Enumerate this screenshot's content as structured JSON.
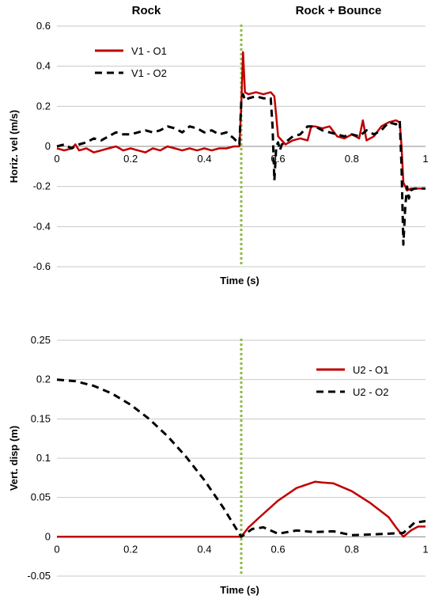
{
  "header": {
    "left_label": "Rock",
    "right_label": "Rock + Bounce"
  },
  "chart_data": [
    {
      "type": "line",
      "xlabel": "Time (s)",
      "ylabel": "Horiz. vel (m/s)",
      "xlim": [
        0,
        1
      ],
      "ylim": [
        -0.6,
        0.6
      ],
      "xticks": [
        "0",
        "0.2",
        "0.4",
        "0.6",
        "0.8",
        "1"
      ],
      "yticks": [
        "-0.6",
        "-0.4",
        "-0.2",
        "0",
        "0.2",
        "0.4",
        "0.6"
      ],
      "grid": "horizontal",
      "legend_position": "top-left",
      "marker_x": 0.5,
      "series": [
        {
          "name": "V1 - O1",
          "color": "#c00000",
          "style": "solid",
          "x": [
            0,
            0.02,
            0.04,
            0.05,
            0.06,
            0.08,
            0.1,
            0.12,
            0.14,
            0.16,
            0.18,
            0.2,
            0.22,
            0.24,
            0.26,
            0.28,
            0.3,
            0.32,
            0.34,
            0.36,
            0.38,
            0.4,
            0.42,
            0.44,
            0.46,
            0.48,
            0.495,
            0.5,
            0.505,
            0.51,
            0.52,
            0.54,
            0.56,
            0.58,
            0.59,
            0.595,
            0.6,
            0.61,
            0.62,
            0.64,
            0.66,
            0.68,
            0.69,
            0.7,
            0.72,
            0.74,
            0.76,
            0.78,
            0.8,
            0.81,
            0.82,
            0.83,
            0.84,
            0.86,
            0.88,
            0.9,
            0.92,
            0.93,
            0.935,
            0.94,
            0.95,
            0.96,
            1
          ],
          "values": [
            -0.01,
            -0.02,
            -0.01,
            0.01,
            -0.02,
            -0.01,
            -0.03,
            -0.02,
            -0.01,
            0.0,
            -0.02,
            -0.01,
            -0.02,
            -0.03,
            -0.01,
            -0.02,
            0.0,
            -0.01,
            -0.02,
            -0.01,
            -0.02,
            -0.01,
            -0.02,
            -0.01,
            -0.01,
            0.0,
            0.0,
            0.2,
            0.47,
            0.27,
            0.26,
            0.27,
            0.26,
            0.27,
            0.25,
            0.15,
            0.05,
            0.03,
            0.01,
            0.03,
            0.04,
            0.03,
            0.1,
            0.1,
            0.09,
            0.1,
            0.05,
            0.04,
            0.06,
            0.05,
            0.04,
            0.13,
            0.03,
            0.05,
            0.1,
            0.12,
            0.13,
            0.12,
            0.0,
            -0.18,
            -0.22,
            -0.21,
            -0.21
          ]
        },
        {
          "name": "V1 - O2",
          "color": "#000000",
          "style": "dashed",
          "x": [
            0,
            0.02,
            0.04,
            0.06,
            0.08,
            0.1,
            0.12,
            0.14,
            0.16,
            0.18,
            0.2,
            0.22,
            0.24,
            0.26,
            0.28,
            0.3,
            0.32,
            0.34,
            0.36,
            0.38,
            0.4,
            0.42,
            0.44,
            0.46,
            0.48,
            0.495,
            0.5,
            0.505,
            0.51,
            0.52,
            0.54,
            0.56,
            0.58,
            0.585,
            0.59,
            0.595,
            0.6,
            0.605,
            0.61,
            0.62,
            0.64,
            0.66,
            0.68,
            0.7,
            0.72,
            0.74,
            0.76,
            0.78,
            0.8,
            0.82,
            0.84,
            0.86,
            0.88,
            0.9,
            0.92,
            0.93,
            0.935,
            0.94,
            0.945,
            0.95,
            0.955,
            0.96,
            0.97,
            1
          ],
          "values": [
            0.0,
            0.01,
            -0.01,
            0.01,
            0.02,
            0.04,
            0.03,
            0.05,
            0.07,
            0.06,
            0.06,
            0.07,
            0.08,
            0.07,
            0.08,
            0.1,
            0.09,
            0.07,
            0.1,
            0.09,
            0.07,
            0.08,
            0.06,
            0.07,
            0.04,
            0.01,
            0.22,
            0.26,
            0.23,
            0.24,
            0.25,
            0.24,
            0.24,
            0.1,
            -0.17,
            0.0,
            0.02,
            -0.02,
            0.01,
            0.02,
            0.05,
            0.06,
            0.1,
            0.1,
            0.08,
            0.07,
            0.06,
            0.05,
            0.06,
            0.05,
            0.08,
            0.06,
            0.08,
            0.12,
            0.11,
            0.13,
            -0.1,
            -0.49,
            -0.3,
            -0.2,
            -0.26,
            -0.22,
            -0.21,
            -0.21
          ]
        }
      ]
    },
    {
      "type": "line",
      "xlabel": "Time (s)",
      "ylabel": "Vert. disp (m)",
      "xlim": [
        0,
        1
      ],
      "ylim": [
        -0.05,
        0.25
      ],
      "xticks": [
        "0",
        "0.2",
        "0.4",
        "0.6",
        "0.8",
        "1"
      ],
      "yticks": [
        "-0.05",
        "0",
        "0.05",
        "0.1",
        "0.15",
        "0.2",
        "0.25"
      ],
      "grid": "horizontal",
      "legend_position": "top-right",
      "marker_x": 0.5,
      "series": [
        {
          "name": "U2 - O1",
          "color": "#c00000",
          "style": "solid",
          "x": [
            0,
            0.1,
            0.2,
            0.3,
            0.4,
            0.5,
            0.52,
            0.55,
            0.6,
            0.65,
            0.7,
            0.72,
            0.75,
            0.8,
            0.85,
            0.9,
            0.92,
            0.94,
            0.96,
            0.98,
            1
          ],
          "values": [
            0,
            0,
            0,
            0,
            0,
            0,
            0.012,
            0.025,
            0.046,
            0.062,
            0.07,
            0.069,
            0.068,
            0.058,
            0.043,
            0.025,
            0.012,
            0.0,
            0.008,
            0.013,
            0.013
          ]
        },
        {
          "name": "U2 - O2",
          "color": "#000000",
          "style": "dashed",
          "x": [
            0,
            0.05,
            0.1,
            0.15,
            0.2,
            0.25,
            0.3,
            0.35,
            0.4,
            0.45,
            0.5,
            0.53,
            0.56,
            0.6,
            0.65,
            0.7,
            0.75,
            0.8,
            0.85,
            0.9,
            0.94,
            0.97,
            1
          ],
          "values": [
            0.2,
            0.198,
            0.192,
            0.182,
            0.168,
            0.15,
            0.128,
            0.102,
            0.072,
            0.038,
            0.0,
            0.01,
            0.012,
            0.004,
            0.008,
            0.006,
            0.007,
            0.002,
            0.003,
            0.004,
            0.005,
            0.018,
            0.02
          ]
        }
      ]
    }
  ]
}
